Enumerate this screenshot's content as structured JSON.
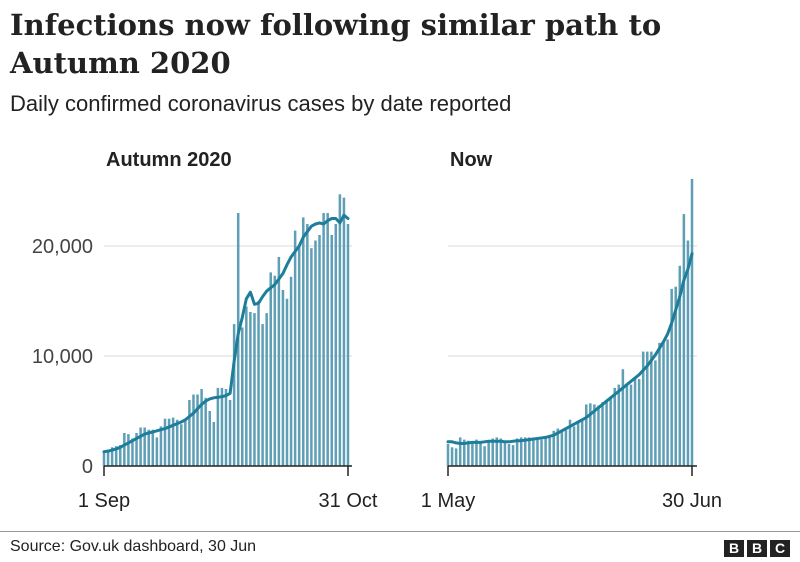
{
  "header": {
    "title": "Infections now following similar path to Autumn 2020",
    "subtitle": "Daily confirmed coronavirus cases by date reported"
  },
  "footer": {
    "source": "Source: Gov.uk dashboard, 30 Jun",
    "logo_letters": [
      "B",
      "B",
      "C"
    ]
  },
  "colors": {
    "bar": "#5e9fb6",
    "line": "#1d7d9a",
    "grid": "#d9d9d9",
    "axis": "#222222"
  },
  "chart_data": [
    {
      "type": "bar",
      "title": "Autumn 2020",
      "y_ticks": [
        0,
        10000,
        20000
      ],
      "y_tick_labels": [
        "0",
        "10,000",
        "20,000"
      ],
      "ylim": [
        0,
        27000
      ],
      "x_tick_labels": [
        "1 Sep",
        "31 Oct"
      ],
      "x_start": "2020-09-01",
      "x_end": "2020-10-31",
      "series": [
        {
          "type": "bar",
          "values": [
            1300,
            1500,
            1700,
            1800,
            1900,
            3000,
            2900,
            2500,
            3000,
            3500,
            3500,
            3300,
            3300,
            2600,
            3600,
            4300,
            4300,
            4400,
            4200,
            3800,
            4200,
            6000,
            6500,
            6500,
            7000,
            6200,
            5000,
            4000,
            7100,
            7100,
            7000,
            6000,
            12900,
            23000,
            12600,
            14500,
            14000,
            13900,
            15000,
            12900,
            13900,
            17600,
            17300,
            19000,
            16000,
            15200,
            17200,
            21400,
            20000,
            22600,
            22000,
            19800,
            20500,
            21000,
            23000,
            23000,
            21000,
            22000,
            24700,
            24400,
            22000
          ]
        },
        {
          "type": "line",
          "values": [
            1300,
            1350,
            1450,
            1550,
            1700,
            1900,
            2100,
            2300,
            2500,
            2700,
            2900,
            3000,
            3100,
            3200,
            3300,
            3400,
            3550,
            3700,
            3850,
            4000,
            4200,
            4500,
            4800,
            5200,
            5600,
            5900,
            6100,
            6200,
            6250,
            6300,
            6400,
            6600,
            9500,
            12000,
            13500,
            15200,
            15800,
            14700,
            14800,
            15400,
            15900,
            16200,
            16500,
            17000,
            17500,
            18300,
            19000,
            19500,
            20000,
            20800,
            21300,
            21800,
            22000,
            22100,
            22000,
            22300,
            22500,
            22500,
            22100,
            22800,
            22500
          ]
        }
      ]
    },
    {
      "type": "bar",
      "title": "Now",
      "ylim": [
        0,
        27000
      ],
      "x_tick_labels": [
        "1 May",
        "30 Jun"
      ],
      "x_start": "2021-05-01",
      "x_end": "2021-06-30",
      "series": [
        {
          "type": "bar",
          "values": [
            2000,
            1700,
            1600,
            2600,
            2400,
            2300,
            2200,
            2400,
            2200,
            1800,
            2300,
            2500,
            2600,
            2500,
            2300,
            2000,
            1900,
            2500,
            2600,
            2600,
            2600,
            2600,
            2600,
            2400,
            2600,
            2800,
            3200,
            3400,
            3200,
            3500,
            4200,
            3600,
            4000,
            4100,
            5600,
            5700,
            5600,
            5500,
            5800,
            6000,
            6300,
            7100,
            7400,
            8800,
            7300,
            7400,
            8100,
            7900,
            10400,
            10400,
            10400,
            9600,
            11200,
            11400,
            11500,
            16100,
            16300,
            18200,
            22900,
            20500,
            26100
          ]
        },
        {
          "type": "line",
          "values": [
            2200,
            2200,
            2100,
            2050,
            2050,
            2100,
            2150,
            2150,
            2150,
            2200,
            2250,
            2250,
            2250,
            2250,
            2200,
            2200,
            2250,
            2300,
            2300,
            2350,
            2400,
            2450,
            2500,
            2550,
            2600,
            2700,
            2800,
            3000,
            3200,
            3400,
            3600,
            3800,
            4000,
            4200,
            4400,
            4700,
            5000,
            5300,
            5600,
            5900,
            6200,
            6500,
            6800,
            7100,
            7400,
            7700,
            8000,
            8300,
            8700,
            9100,
            9600,
            10100,
            10700,
            11300,
            12000,
            13000,
            14200,
            15400,
            16900,
            17900,
            19300
          ]
        }
      ]
    }
  ]
}
